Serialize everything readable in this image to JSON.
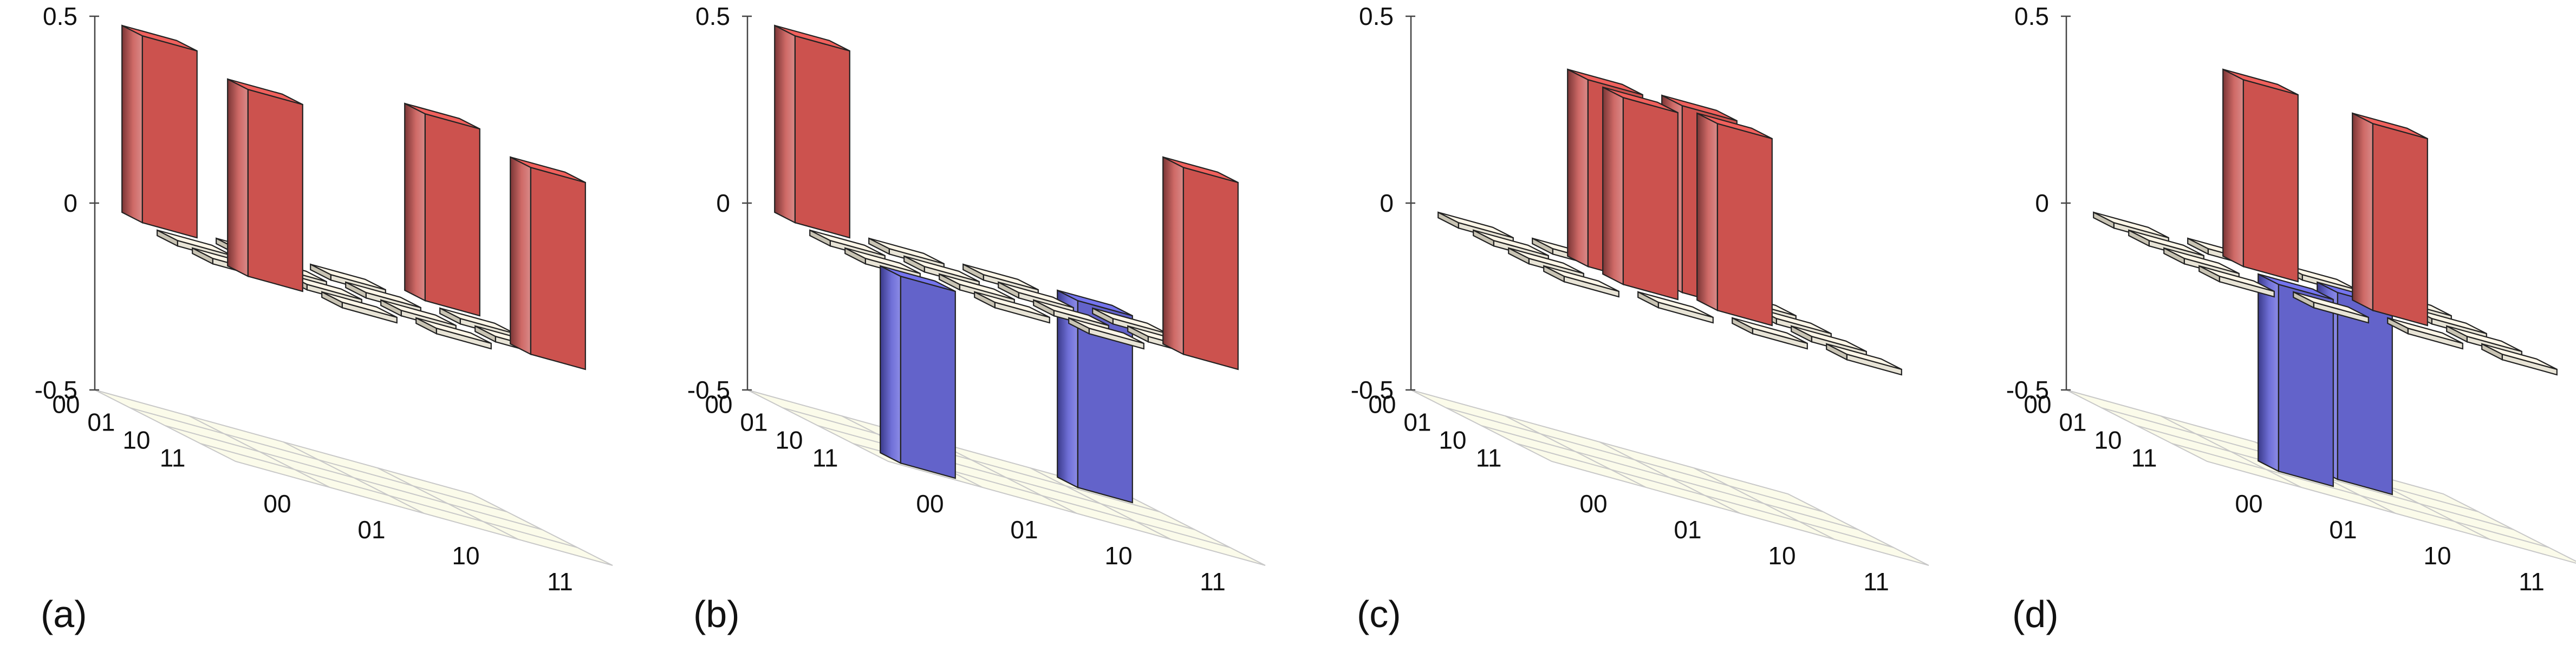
{
  "chart_data": [
    {
      "panel": "(a)",
      "type": "bar3d",
      "basis": [
        "00",
        "01",
        "10",
        "11"
      ],
      "zlim": [
        -0.5,
        0.5
      ],
      "z_ticks": [
        "0.5",
        "0",
        "-0.5"
      ],
      "values": [
        [
          0.5,
          0.0,
          0.0,
          0.5
        ],
        [
          0.0,
          0.0,
          0.0,
          0.0
        ],
        [
          0.0,
          0.0,
          0.0,
          0.0
        ],
        [
          0.5,
          0.0,
          0.0,
          0.5
        ]
      ]
    },
    {
      "panel": "(b)",
      "type": "bar3d",
      "basis": [
        "00",
        "01",
        "10",
        "11"
      ],
      "zlim": [
        -0.5,
        0.5
      ],
      "z_ticks": [
        "0.5",
        "0",
        "-0.5"
      ],
      "values": [
        [
          0.5,
          0.0,
          0.0,
          -0.5
        ],
        [
          0.0,
          0.0,
          0.0,
          0.0
        ],
        [
          0.0,
          0.0,
          0.0,
          0.0
        ],
        [
          -0.5,
          0.0,
          0.0,
          0.5
        ]
      ]
    },
    {
      "panel": "(c)",
      "type": "bar3d",
      "basis": [
        "00",
        "01",
        "10",
        "11"
      ],
      "zlim": [
        -0.5,
        0.5
      ],
      "z_ticks": [
        "0.5",
        "0",
        "-0.5"
      ],
      "values": [
        [
          0.0,
          0.0,
          0.0,
          0.0
        ],
        [
          0.0,
          0.5,
          0.5,
          0.0
        ],
        [
          0.0,
          0.5,
          0.5,
          0.0
        ],
        [
          0.0,
          0.0,
          0.0,
          0.0
        ]
      ]
    },
    {
      "panel": "(d)",
      "type": "bar3d",
      "basis": [
        "00",
        "01",
        "10",
        "11"
      ],
      "zlim": [
        -0.5,
        0.5
      ],
      "z_ticks": [
        "0.5",
        "0",
        "-0.5"
      ],
      "values": [
        [
          0.0,
          0.0,
          0.0,
          0.0
        ],
        [
          0.0,
          0.5,
          -0.5,
          0.0
        ],
        [
          0.0,
          -0.5,
          0.5,
          0.0
        ],
        [
          0.0,
          0.0,
          0.0,
          0.0
        ]
      ]
    }
  ],
  "colors": {
    "positive": "#f0605c",
    "negative": "#7474ee",
    "floor": "#fbfbea",
    "grid": "#c8c8c8",
    "tile_pos": "#fdf6e8",
    "tile_neg": "#efeafc"
  }
}
